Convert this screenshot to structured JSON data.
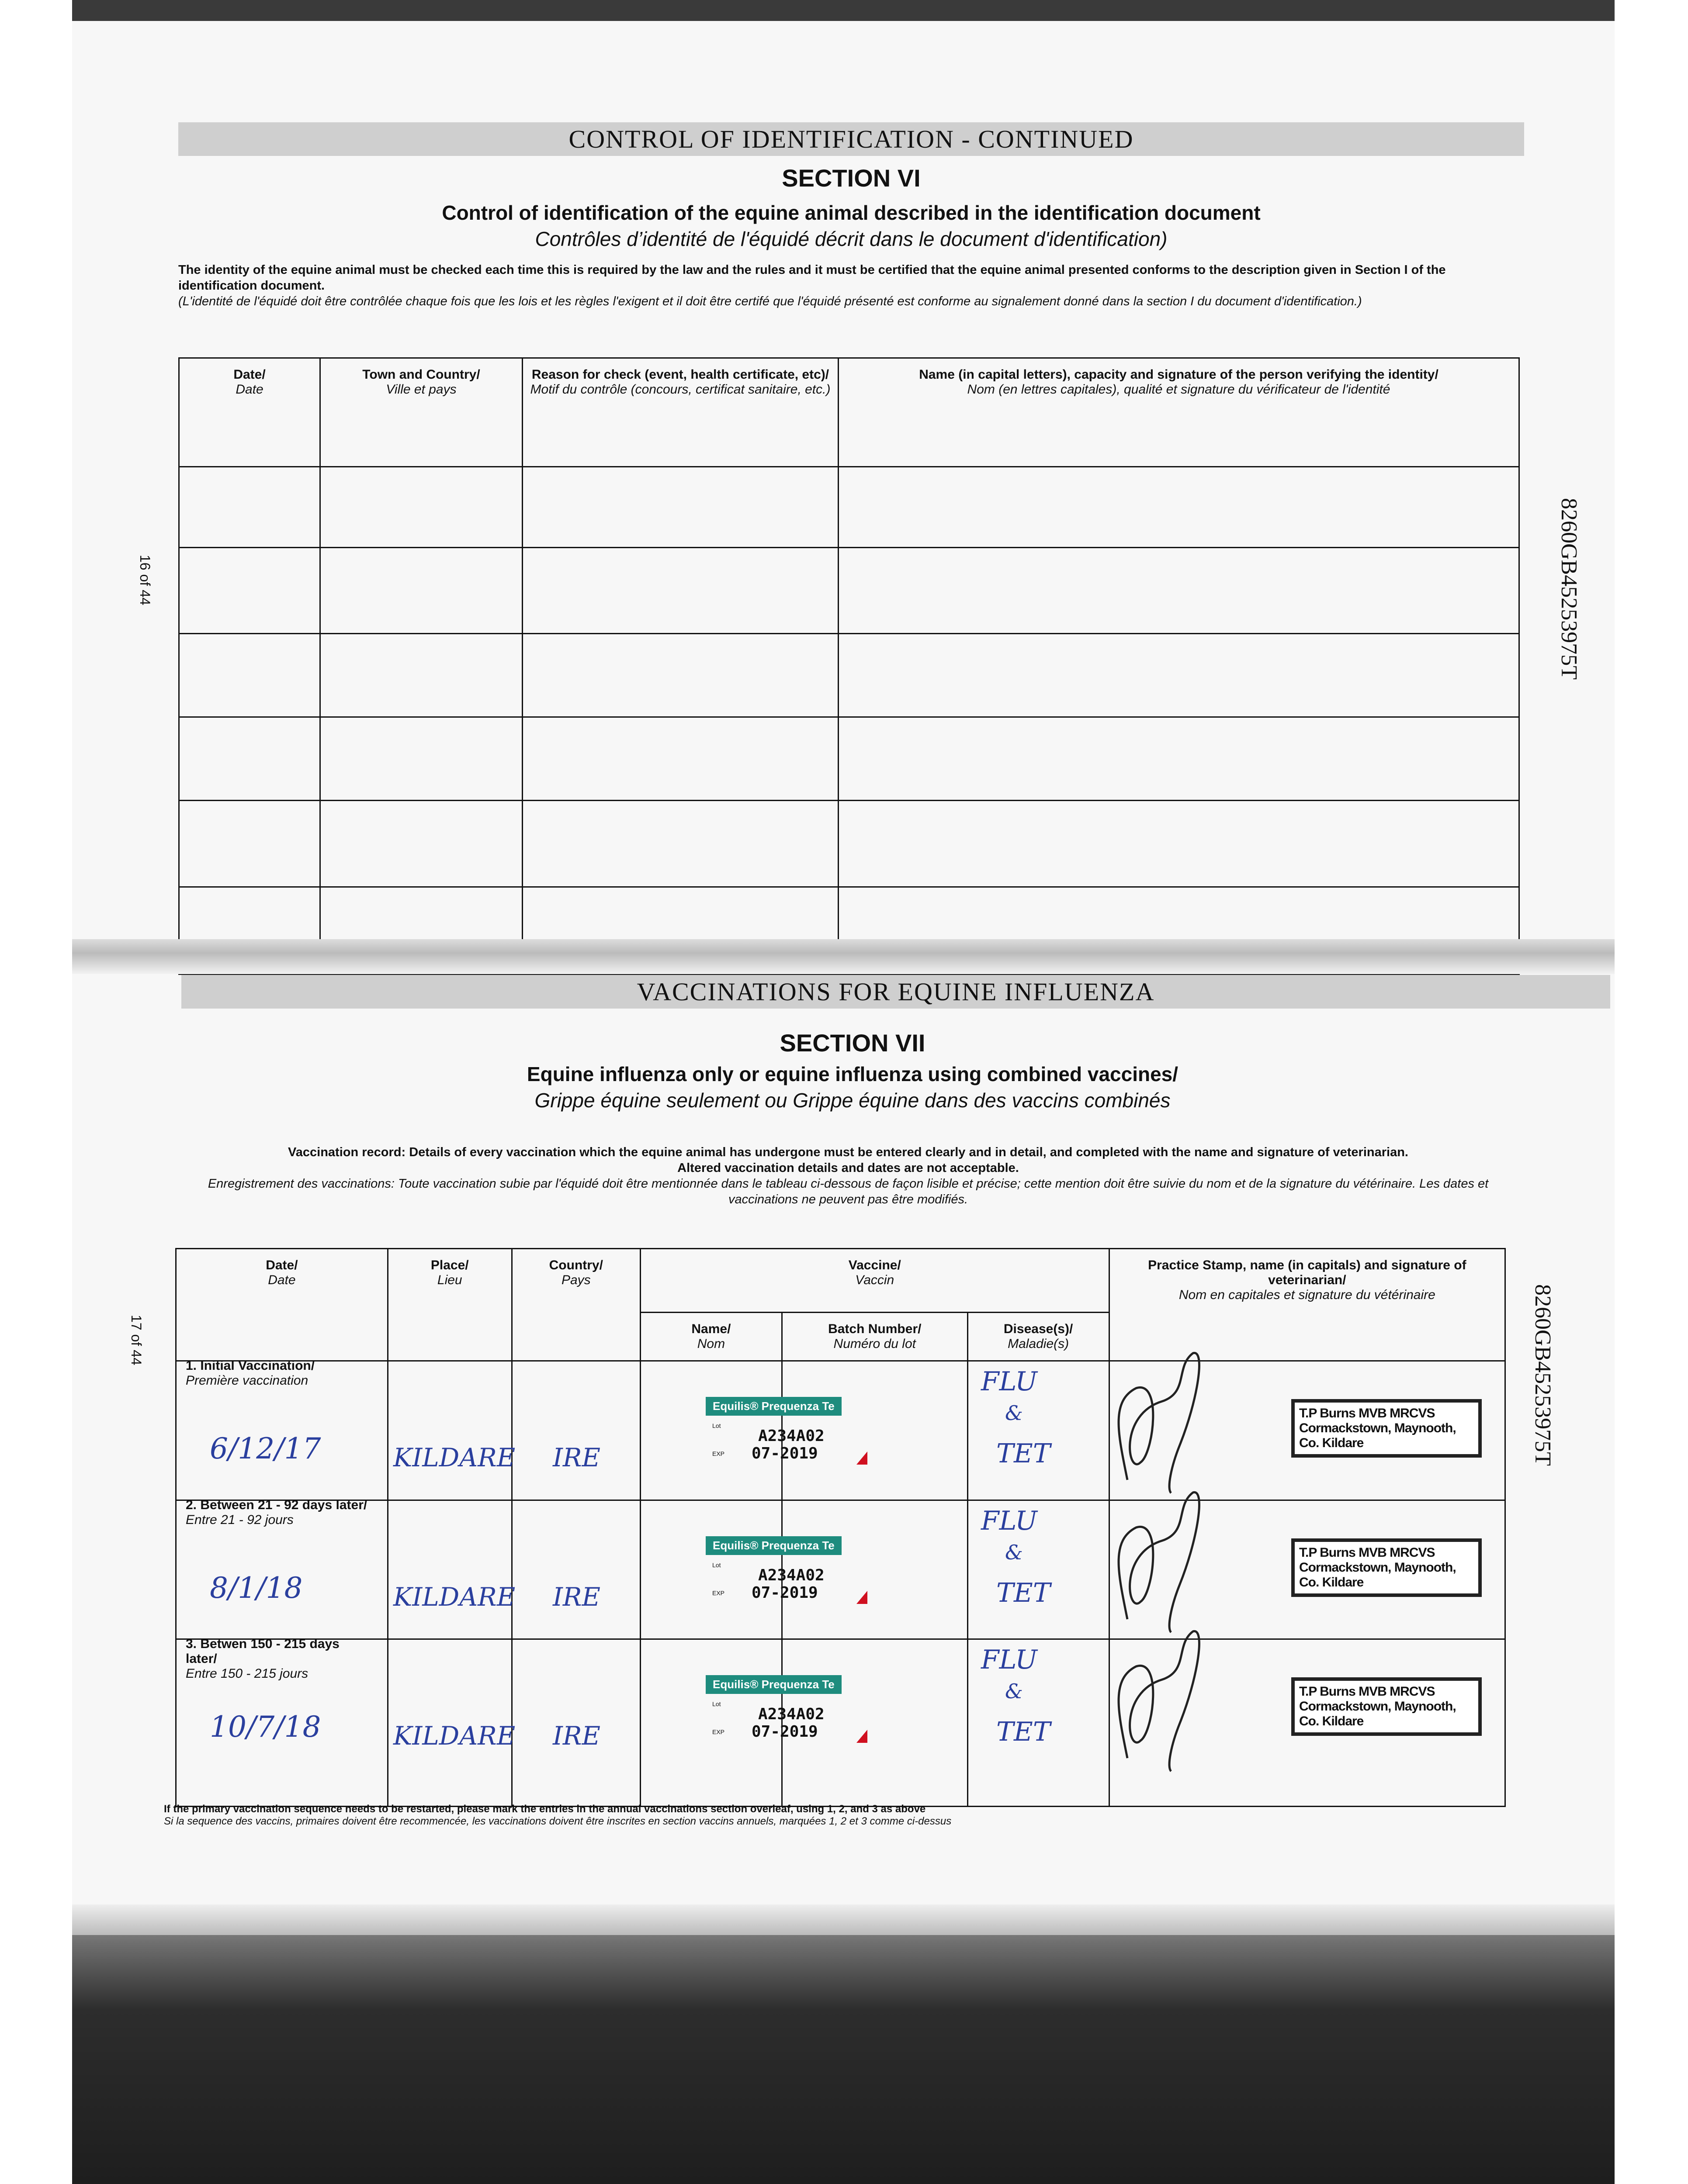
{
  "side_id": "8260GB45253975T",
  "section_vi": {
    "banner": "CONTROL OF IDENTIFICATION - CONTINUED",
    "section": "SECTION VI",
    "title": "Control of identification of the equine animal described in the identification document",
    "title_fr": "Contrôles d’identité de l'équidé décrit dans le document d'identification)",
    "para_en": "The identity of the equine animal must be checked each time this is required by the law and the rules and it must be certified that the equine animal presented conforms to the description given in Section I of the identification document.",
    "para_fr": "(L'identité de l'équidé doit être contrôlée chaque fois que les lois et les règles l'exigent et il doit être certifé que l'équidé présenté est conforme au signalement donné dans la section I du document d'identification.)",
    "page_number": "16 of 44",
    "columns": [
      {
        "en": "Date/",
        "fr": "Date"
      },
      {
        "en": "Town and Country/",
        "fr": "Ville et pays"
      },
      {
        "en": "Reason for check (event, health certificate, etc)/",
        "fr": "Motif du contrôle (concours, certificat sanitaire, etc.)"
      },
      {
        "en": "Name (in capital letters), capacity and signature of the person verifying the identity/",
        "fr": "Nom (en lettres capitales), qualité et signature du vérificateur de l'identité"
      }
    ]
  },
  "section_vii": {
    "banner": "VACCINATIONS FOR EQUINE INFLUENZA",
    "section": "SECTION VII",
    "title": "Equine influenza only or equine influenza using combined vaccines/",
    "title_fr": "Grippe équine seulement ou Grippe équine dans des vaccins combinés",
    "para_en": "Vaccination record: Details of every vaccination which the equine animal has undergone must be entered clearly and in detail, and completed with the name and signature of veterinarian.",
    "para_en2": "Altered vaccination details and dates are not acceptable.",
    "para_fr": "Enregistrement des vaccinations: Toute vaccination subie par l'équidé doit être mentionnée dans le tableau ci-dessous de façon lisible et précise; cette mention doit être suivie du nom et de la signature du vétérinaire. Les dates et vaccinations ne peuvent pas être modifiés.",
    "page_number": "17 of 44",
    "headers": {
      "date": {
        "en": "Date/",
        "fr": "Date"
      },
      "place": {
        "en": "Place/",
        "fr": "Lieu"
      },
      "country": {
        "en": "Country/",
        "fr": "Pays"
      },
      "vaccine": {
        "en": "Vaccine/",
        "fr": "Vaccin"
      },
      "name": {
        "en": "Name/",
        "fr": "Nom"
      },
      "batch": {
        "en": "Batch Number/",
        "fr": "Numéro du lot"
      },
      "disease": {
        "en": "Disease(s)/",
        "fr": "Maladie(s)"
      },
      "stamp": {
        "en": "Practice Stamp, name (in capitals) and signature of veterinarian/",
        "fr": "Nom en capitales et signature du vétérinaire"
      }
    },
    "rows": [
      {
        "label": "1. Initial Vaccination/",
        "label_fr": "Première vaccination",
        "date": "6/12/17",
        "place": "KILDARE",
        "country": "IRE",
        "vaccine_label": "Equilis® Prequenza Te",
        "lot_tag": "Lot",
        "exp_tag": "EXP",
        "lot": "A234A02",
        "exp": "07-2019",
        "disease1": "FLU",
        "disease2": "&",
        "disease3": "TET",
        "stamp": [
          "T.P Burns MVB MRCVS",
          "Cormackstown, Maynooth,",
          "Co. Kildare"
        ]
      },
      {
        "label": "2. Between 21 - 92 days later/",
        "label_fr": "Entre 21 - 92 jours",
        "date": "8/1/18",
        "place": "KILDARE",
        "country": "IRE",
        "vaccine_label": "Equilis® Prequenza Te",
        "lot_tag": "Lot",
        "exp_tag": "EXP",
        "lot": "A234A02",
        "exp": "07-2019",
        "disease1": "FLU",
        "disease2": "&",
        "disease3": "TET",
        "stamp": [
          "T.P Burns MVB MRCVS",
          "Cormackstown, Maynooth,",
          "Co. Kildare"
        ]
      },
      {
        "label": "3. Betwen 150 - 215 days later/",
        "label_fr": "Entre 150 - 215 jours",
        "date": "10/7/18",
        "place": "KILDARE",
        "country": "IRE",
        "vaccine_label": "Equilis® Prequenza Te",
        "lot_tag": "Lot",
        "exp_tag": "EXP",
        "lot": "A234A02",
        "exp": "07-2019",
        "disease1": "FLU",
        "disease2": "&",
        "disease3": "TET",
        "stamp": [
          "T.P Burns MVB MRCVS",
          "Cormackstown, Maynooth,",
          "Co. Kildare"
        ]
      }
    ],
    "footnote_en": "If the primary vaccination sequence needs to be restarted, please mark the entries in the annual vaccinations section overleaf, using 1, 2, and 3 as above",
    "footnote_fr": "Si la sequence des vaccins, primaires doivent être recommencée, les vaccinations doivent être inscrites en section vaccins annuels, marquées 1, 2 et 3 comme ci-dessus"
  },
  "colors": {
    "vaccine_label": "#1e8c7e",
    "ink": "#2a3f9e"
  }
}
